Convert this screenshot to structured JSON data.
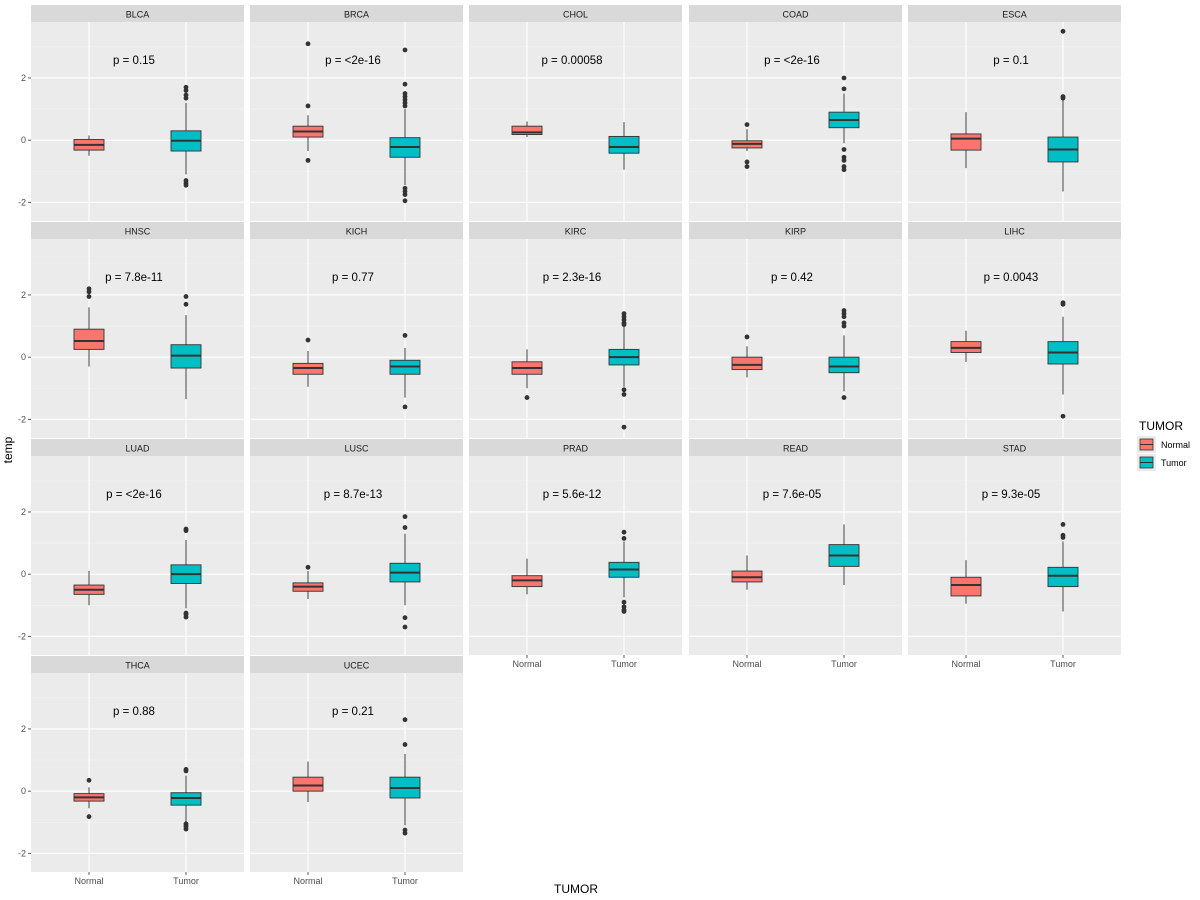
{
  "chart_data": {
    "type": "boxplot",
    "xlabel": "TUMOR",
    "ylabel": "temp",
    "categories": [
      "Normal",
      "Tumor"
    ],
    "ylim": [
      -2.6,
      3.8
    ],
    "yticks": [
      -2,
      0,
      2
    ],
    "grid": true,
    "legend": {
      "title": "TUMOR",
      "position": "right",
      "entries": [
        {
          "label": "Normal",
          "color": "#F8766D"
        },
        {
          "label": "Tumor",
          "color": "#00BFC4"
        }
      ]
    },
    "panels": [
      {
        "name": "BLCA",
        "pvalue": "p = 0.15",
        "normal": {
          "min": -0.5,
          "q1": -0.32,
          "median": -0.15,
          "q3": 0.02,
          "max": 0.15,
          "outliers": []
        },
        "tumor": {
          "min": -1.1,
          "q1": -0.35,
          "median": -0.02,
          "q3": 0.3,
          "max": 1.2,
          "outliers": [
            1.7,
            1.6,
            1.45,
            1.35,
            -1.3,
            -1.38,
            -1.45
          ]
        }
      },
      {
        "name": "BRCA",
        "pvalue": "p = <2e-16",
        "normal": {
          "min": -0.35,
          "q1": 0.1,
          "median": 0.28,
          "q3": 0.45,
          "max": 0.8,
          "outliers": [
            3.1,
            1.1,
            -0.65
          ]
        },
        "tumor": {
          "min": -1.45,
          "q1": -0.55,
          "median": -0.22,
          "q3": 0.08,
          "max": 1.0,
          "outliers": [
            2.9,
            1.8,
            1.5,
            1.4,
            1.3,
            1.2,
            1.1,
            -1.55,
            -1.65,
            -1.75,
            -1.95
          ]
        }
      },
      {
        "name": "CHOL",
        "pvalue": "p = 0.00058",
        "normal": {
          "min": 0.1,
          "q1": 0.18,
          "median": 0.25,
          "q3": 0.45,
          "max": 0.6,
          "outliers": []
        },
        "tumor": {
          "min": -0.95,
          "q1": -0.42,
          "median": -0.22,
          "q3": 0.12,
          "max": 0.58,
          "outliers": []
        }
      },
      {
        "name": "COAD",
        "pvalue": "p = <2e-16",
        "normal": {
          "min": -0.35,
          "q1": -0.25,
          "median": -0.12,
          "q3": -0.02,
          "max": 0.35,
          "outliers": [
            0.5,
            -0.7,
            -0.85
          ]
        },
        "tumor": {
          "min": -0.1,
          "q1": 0.4,
          "median": 0.65,
          "q3": 0.9,
          "max": 1.5,
          "outliers": [
            2.0,
            1.65,
            -0.3,
            -0.55,
            -0.65,
            -0.85,
            -0.95
          ]
        }
      },
      {
        "name": "ESCA",
        "pvalue": "p = 0.1",
        "normal": {
          "min": -0.9,
          "q1": -0.32,
          "median": 0.05,
          "q3": 0.2,
          "max": 0.9,
          "outliers": []
        },
        "tumor": {
          "min": -1.65,
          "q1": -0.7,
          "median": -0.3,
          "q3": 0.1,
          "max": 1.3,
          "outliers": [
            3.5,
            1.4,
            1.35
          ]
        }
      },
      {
        "name": "HNSC",
        "pvalue": "p = 7.8e-11",
        "normal": {
          "min": -0.3,
          "q1": 0.25,
          "median": 0.52,
          "q3": 0.9,
          "max": 1.6,
          "outliers": [
            2.2,
            2.1,
            1.95
          ]
        },
        "tumor": {
          "min": -1.35,
          "q1": -0.35,
          "median": 0.05,
          "q3": 0.4,
          "max": 1.35,
          "outliers": [
            1.95,
            1.7
          ]
        }
      },
      {
        "name": "KICH",
        "pvalue": "p = 0.77",
        "normal": {
          "min": -0.95,
          "q1": -0.55,
          "median": -0.35,
          "q3": -0.2,
          "max": 0.2,
          "outliers": [
            0.55
          ]
        },
        "tumor": {
          "min": -1.3,
          "q1": -0.55,
          "median": -0.3,
          "q3": -0.1,
          "max": 0.3,
          "outliers": [
            0.7,
            -1.6
          ]
        }
      },
      {
        "name": "KIRC",
        "pvalue": "p = 2.3e-16",
        "normal": {
          "min": -1.0,
          "q1": -0.55,
          "median": -0.35,
          "q3": -0.15,
          "max": 0.25,
          "outliers": [
            -1.3
          ]
        },
        "tumor": {
          "min": -0.95,
          "q1": -0.25,
          "median": 0.0,
          "q3": 0.25,
          "max": 1.0,
          "outliers": [
            1.4,
            1.3,
            1.2,
            1.1,
            1.05,
            -1.05,
            -1.2,
            -2.25
          ]
        }
      },
      {
        "name": "KIRP",
        "pvalue": "p = 0.42",
        "normal": {
          "min": -0.65,
          "q1": -0.4,
          "median": -0.25,
          "q3": 0.0,
          "max": 0.35,
          "outliers": [
            0.65
          ]
        },
        "tumor": {
          "min": -1.1,
          "q1": -0.5,
          "median": -0.3,
          "q3": 0.0,
          "max": 0.7,
          "outliers": [
            1.5,
            1.4,
            1.3,
            1.1,
            1.0,
            -1.3
          ]
        }
      },
      {
        "name": "LIHC",
        "pvalue": "p = 0.0043",
        "normal": {
          "min": -0.15,
          "q1": 0.15,
          "median": 0.3,
          "q3": 0.5,
          "max": 0.85,
          "outliers": []
        },
        "tumor": {
          "min": -1.2,
          "q1": -0.22,
          "median": 0.15,
          "q3": 0.5,
          "max": 1.3,
          "outliers": [
            1.75,
            1.7,
            -1.9
          ]
        }
      },
      {
        "name": "LUAD",
        "pvalue": "p = <2e-16",
        "normal": {
          "min": -1.0,
          "q1": -0.65,
          "median": -0.5,
          "q3": -0.35,
          "max": 0.1,
          "outliers": []
        },
        "tumor": {
          "min": -1.1,
          "q1": -0.3,
          "median": 0.0,
          "q3": 0.3,
          "max": 1.1,
          "outliers": [
            1.45,
            1.4,
            -1.25,
            -1.3,
            -1.38
          ]
        }
      },
      {
        "name": "LUSC",
        "pvalue": "p = 8.7e-13",
        "normal": {
          "min": -0.8,
          "q1": -0.55,
          "median": -0.4,
          "q3": -0.28,
          "max": 0.1,
          "outliers": [
            0.22
          ]
        },
        "tumor": {
          "min": -1.0,
          "q1": -0.25,
          "median": 0.05,
          "q3": 0.35,
          "max": 1.3,
          "outliers": [
            1.85,
            1.5,
            -1.4,
            -1.7
          ]
        }
      },
      {
        "name": "PRAD",
        "pvalue": "p = 5.6e-12",
        "normal": {
          "min": -0.65,
          "q1": -0.4,
          "median": -0.2,
          "q3": -0.05,
          "max": 0.5,
          "outliers": []
        },
        "tumor": {
          "min": -0.75,
          "q1": -0.1,
          "median": 0.15,
          "q3": 0.38,
          "max": 1.05,
          "outliers": [
            1.35,
            1.15,
            -0.9,
            -1.05,
            -1.15,
            -1.2
          ]
        }
      },
      {
        "name": "READ",
        "pvalue": "p = 7.6e-05",
        "normal": {
          "min": -0.5,
          "q1": -0.25,
          "median": -0.1,
          "q3": 0.1,
          "max": 0.6,
          "outliers": []
        },
        "tumor": {
          "min": -0.35,
          "q1": 0.25,
          "median": 0.6,
          "q3": 0.95,
          "max": 1.6,
          "outliers": []
        }
      },
      {
        "name": "STAD",
        "pvalue": "p = 9.3e-05",
        "normal": {
          "min": -0.95,
          "q1": -0.7,
          "median": -0.35,
          "q3": -0.1,
          "max": 0.45,
          "outliers": []
        },
        "tumor": {
          "min": -1.2,
          "q1": -0.4,
          "median": -0.05,
          "q3": 0.22,
          "max": 1.05,
          "outliers": [
            1.6,
            1.25,
            1.18
          ]
        }
      },
      {
        "name": "THCA",
        "pvalue": "p = 0.88",
        "normal": {
          "min": -0.55,
          "q1": -0.32,
          "median": -0.2,
          "q3": -0.08,
          "max": 0.12,
          "outliers": [
            0.35,
            -0.82
          ]
        },
        "tumor": {
          "min": -1.0,
          "q1": -0.45,
          "median": -0.22,
          "q3": -0.05,
          "max": 0.5,
          "outliers": [
            0.7,
            0.65,
            -1.05,
            -1.1,
            -1.15,
            -1.22
          ]
        }
      },
      {
        "name": "UCEC",
        "pvalue": "p = 0.21",
        "normal": {
          "min": -0.35,
          "q1": 0.0,
          "median": 0.18,
          "q3": 0.45,
          "max": 0.95,
          "outliers": []
        },
        "tumor": {
          "min": -1.1,
          "q1": -0.22,
          "median": 0.1,
          "q3": 0.45,
          "max": 1.2,
          "outliers": [
            2.3,
            1.5,
            -1.25,
            -1.35
          ]
        }
      }
    ]
  }
}
